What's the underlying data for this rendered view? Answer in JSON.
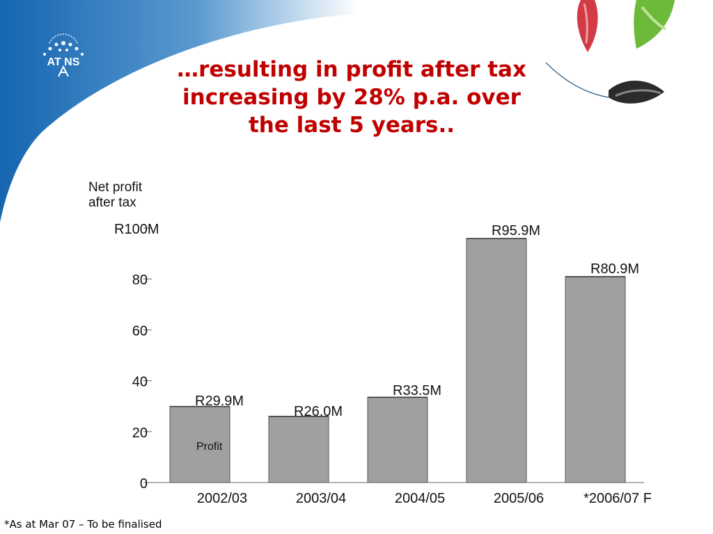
{
  "slide": {
    "title_lines": [
      "…resulting in profit after tax",
      "increasing by 28% p.a. over",
      "the last 5 years.."
    ],
    "footnote": "*As at Mar 07 – To be finalised",
    "logo_text": "AT NS",
    "accent_color": "#c00000",
    "swoosh_color": "#1a6fb5"
  },
  "chart_data": {
    "type": "bar",
    "ylabel_lines": [
      "Net profit",
      "after tax"
    ],
    "categories": [
      "2002/03",
      "2003/04",
      "2004/05",
      "2005/06",
      "*2006/07 F"
    ],
    "values": [
      29.9,
      26.0,
      33.5,
      95.9,
      80.9
    ],
    "data_labels": [
      "R29.9M",
      "R26.0M",
      "R33.5M",
      "R95.9M",
      "R80.9M"
    ],
    "yticks": [
      0,
      20,
      40,
      60,
      80,
      100
    ],
    "ytick_labels": [
      "0",
      "20",
      "40",
      "60",
      "80",
      "R100M"
    ],
    "ylim": [
      0,
      100
    ],
    "annotation": "Profit",
    "bar_color": "#a0a0a0",
    "grid": false
  }
}
